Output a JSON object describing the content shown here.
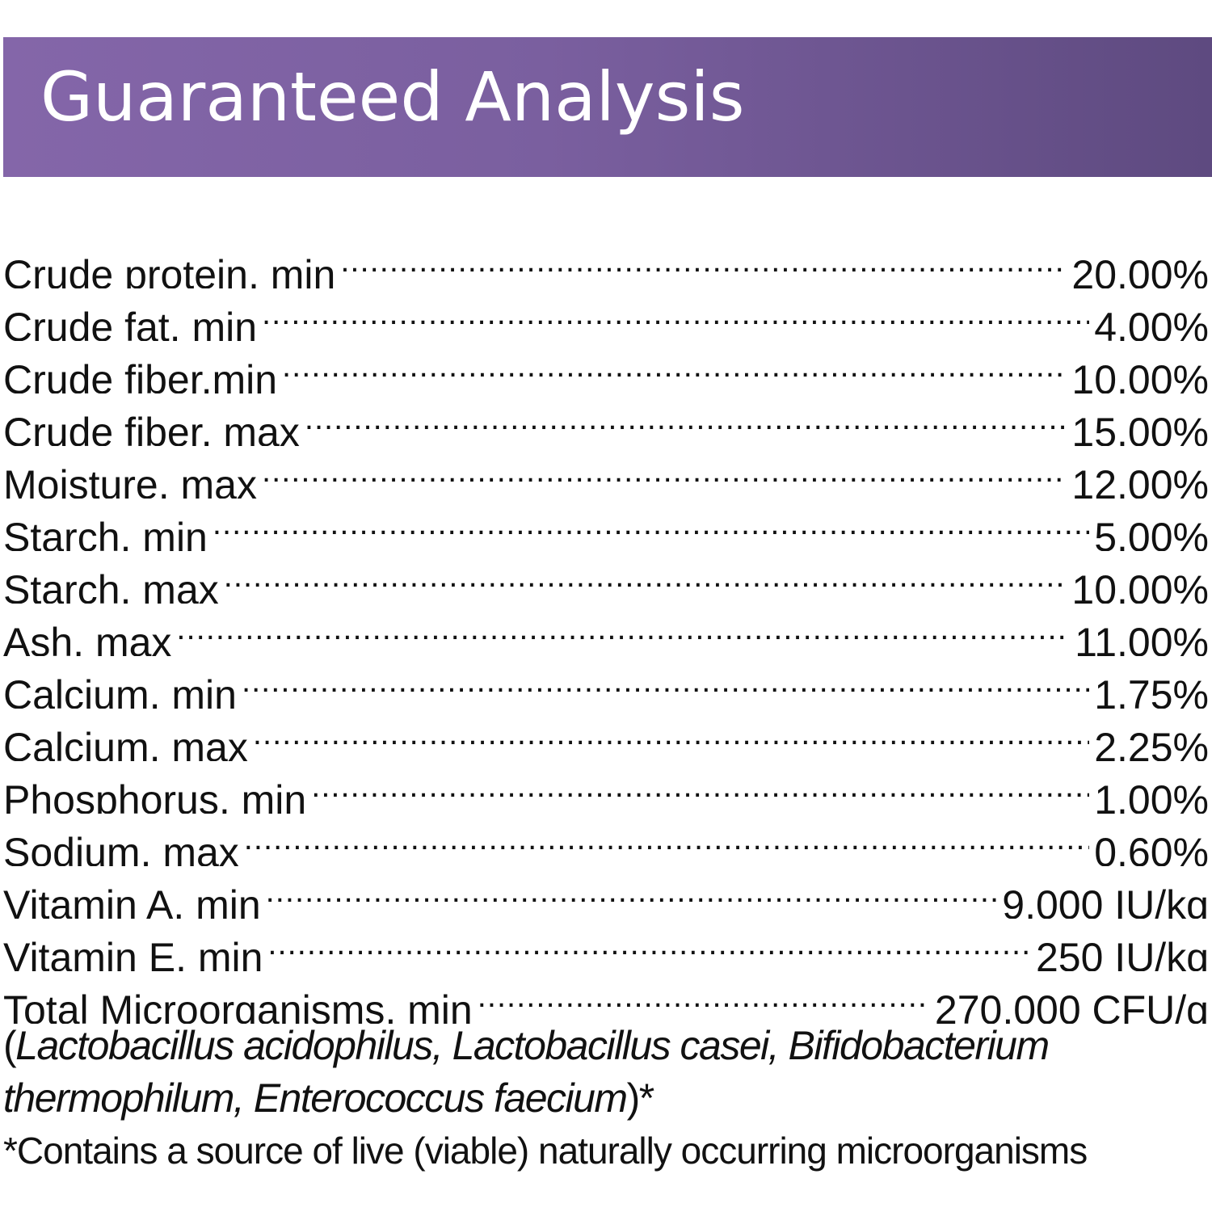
{
  "header": {
    "title": "Guaranteed Analysis",
    "background_colors": [
      "#8466a9",
      "#5e4a80"
    ]
  },
  "analysis": [
    {
      "label": "Crude protein, min",
      "value": "20.00%"
    },
    {
      "label": "Crude fat, min",
      "value": "4.00%"
    },
    {
      "label": "Crude fiber,min",
      "value": "10.00%"
    },
    {
      "label": "Crude fiber, max",
      "value": "15.00%"
    },
    {
      "label": "Moisture, max",
      "value": "12.00%"
    },
    {
      "label": "Starch, min",
      "value": "5.00%"
    },
    {
      "label": "Starch, max",
      "value": "10.00%"
    },
    {
      "label": "Ash, max",
      "value": "11.00%"
    },
    {
      "label": "Calcium, min",
      "value": "1.75%"
    },
    {
      "label": "Calcium, max",
      "value": "2.25%"
    },
    {
      "label": "Phosphorus, min",
      "value": "1.00%"
    },
    {
      "label": "Sodium, max",
      "value": "0.60%"
    },
    {
      "label": "Vitamin A, min",
      "value": "9,000 IU/kg"
    },
    {
      "label": "Vitamin E, min",
      "value": "250 IU/kg"
    },
    {
      "label": "Total Microorganisms, min",
      "value": "270,000 CFU/g"
    }
  ],
  "organisms": {
    "open": "(",
    "names": "Lactobacillus acidophilus, Lactobacillus casei, Bifidobacterium thermophilum, Enterococcus faecium",
    "close": ")*"
  },
  "footnote": "*Contains a source of live (viable) naturally occurring microorganisms"
}
